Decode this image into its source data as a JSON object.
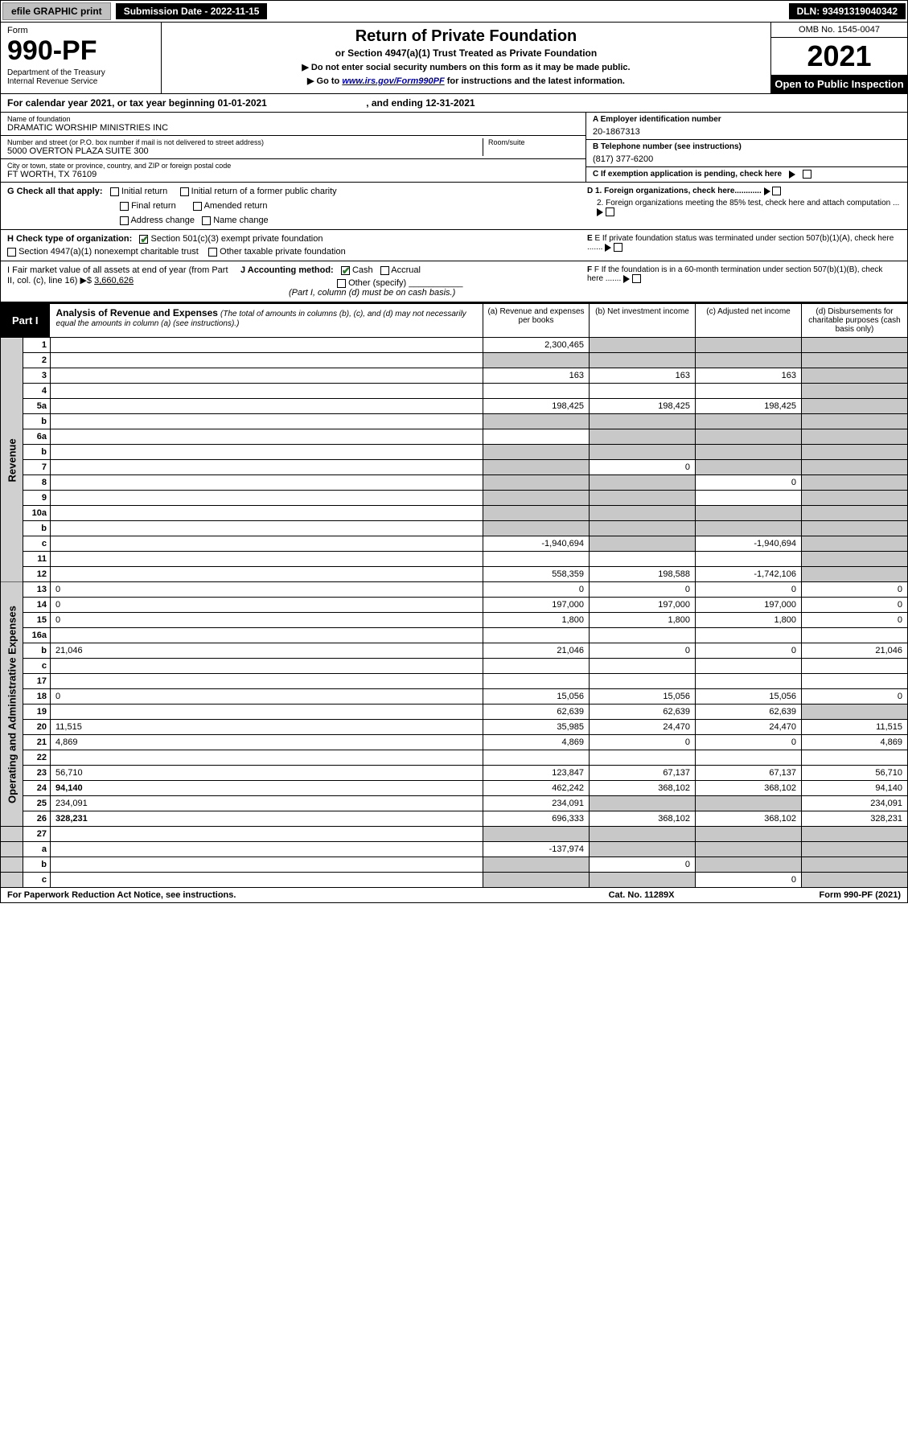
{
  "topbar": {
    "efile_btn": "efile GRAPHIC print",
    "sub_date": "Submission Date - 2022-11-15",
    "dln": "DLN: 93491319040342"
  },
  "header": {
    "form_label": "Form",
    "form_no": "990-PF",
    "dept": "Department of the Treasury\nInternal Revenue Service",
    "title": "Return of Private Foundation",
    "subtitle": "or Section 4947(a)(1) Trust Treated as Private Foundation",
    "note1": "▶ Do not enter social security numbers on this form as it may be made public.",
    "note2_pre": "▶ Go to ",
    "note2_link": "www.irs.gov/Form990PF",
    "note2_post": " for instructions and the latest information.",
    "omb": "OMB No. 1545-0047",
    "year": "2021",
    "open": "Open to Public Inspection"
  },
  "calyear": {
    "text_pre": "For calendar year 2021, or tax year beginning ",
    "begin": "01-01-2021",
    "mid": " , and ending ",
    "end": "12-31-2021"
  },
  "info": {
    "name_lbl": "Name of foundation",
    "name": "DRAMATIC WORSHIP MINISTRIES INC",
    "addr_lbl": "Number and street (or P.O. box number if mail is not delivered to street address)",
    "addr": "5000 OVERTON PLAZA SUITE 300",
    "room_lbl": "Room/suite",
    "city_lbl": "City or town, state or province, country, and ZIP or foreign postal code",
    "city": "FT WORTH, TX  76109",
    "ein_lbl": "A Employer identification number",
    "ein": "20-1867313",
    "tel_lbl": "B Telephone number (see instructions)",
    "tel": "(817) 377-6200",
    "c_lbl": "C If exemption application is pending, check here",
    "d1": "D 1. Foreign organizations, check here............",
    "d2": "2. Foreign organizations meeting the 85% test, check here and attach computation ...",
    "e_lbl": "E If private foundation status was terminated under section 507(b)(1)(A), check here .......",
    "f_lbl": "F If the foundation is in a 60-month termination under section 507(b)(1)(B), check here .......",
    "g_lbl": "G Check all that apply:",
    "g_opts": [
      "Initial return",
      "Initial return of a former public charity",
      "Final return",
      "Amended return",
      "Address change",
      "Name change"
    ],
    "h_lbl": "H Check type of organization:",
    "h1": "Section 501(c)(3) exempt private foundation",
    "h2": "Section 4947(a)(1) nonexempt charitable trust",
    "h3": "Other taxable private foundation",
    "i_lbl": "I Fair market value of all assets at end of year (from Part II, col. (c), line 16) ▶$",
    "i_val": "3,660,626",
    "j_lbl": "J Accounting method:",
    "j_cash": "Cash",
    "j_accr": "Accrual",
    "j_other": "Other (specify)",
    "j_note": "(Part I, column (d) must be on cash basis.)"
  },
  "part1": {
    "label": "Part I",
    "title": "Analysis of Revenue and Expenses",
    "title_note": " (The total of amounts in columns (b), (c), and (d) may not necessarily equal the amounts in column (a) (see instructions).)",
    "cols": {
      "a": "(a) Revenue and expenses per books",
      "b": "(b) Net investment income",
      "c": "(c) Adjusted net income",
      "d": "(d) Disbursements for charitable purposes (cash basis only)"
    }
  },
  "sections": {
    "revenue": "Revenue",
    "opex": "Operating and Administrative Expenses"
  },
  "rows": [
    {
      "n": "1",
      "d": "",
      "a": "2,300,465",
      "b": "",
      "c": "",
      "b_grey": true,
      "c_grey": true,
      "d_grey": true
    },
    {
      "n": "2",
      "d": "",
      "a": "",
      "b": "",
      "c": "",
      "a_grey": true,
      "b_grey": true,
      "c_grey": true,
      "d_grey": true,
      "not_bold": true
    },
    {
      "n": "3",
      "d": "",
      "a": "163",
      "b": "163",
      "c": "163",
      "d_grey": true
    },
    {
      "n": "4",
      "d": "",
      "a": "",
      "b": "",
      "c": "",
      "d_grey": true
    },
    {
      "n": "5a",
      "d": "",
      "a": "198,425",
      "b": "198,425",
      "c": "198,425",
      "d_grey": true
    },
    {
      "n": "b",
      "d": "",
      "a": "",
      "b": "",
      "c": "",
      "a_grey": true,
      "b_grey": true,
      "c_grey": true,
      "d_grey": true
    },
    {
      "n": "6a",
      "d": "",
      "a": "",
      "b": "",
      "c": "",
      "b_grey": true,
      "c_grey": true,
      "d_grey": true
    },
    {
      "n": "b",
      "d": "",
      "a": "",
      "b": "",
      "c": "",
      "a_grey": true,
      "b_grey": true,
      "c_grey": true,
      "d_grey": true
    },
    {
      "n": "7",
      "d": "",
      "a": "",
      "b": "0",
      "c": "",
      "a_grey": true,
      "c_grey": true,
      "d_grey": true
    },
    {
      "n": "8",
      "d": "",
      "a": "",
      "b": "",
      "c": "0",
      "a_grey": true,
      "b_grey": true,
      "d_grey": true
    },
    {
      "n": "9",
      "d": "",
      "a": "",
      "b": "",
      "c": "",
      "a_grey": true,
      "b_grey": true,
      "d_grey": true
    },
    {
      "n": "10a",
      "d": "",
      "a": "",
      "b": "",
      "c": "",
      "a_grey": true,
      "b_grey": true,
      "c_grey": true,
      "d_grey": true
    },
    {
      "n": "b",
      "d": "",
      "a": "",
      "b": "",
      "c": "",
      "a_grey": true,
      "b_grey": true,
      "c_grey": true,
      "d_grey": true
    },
    {
      "n": "c",
      "d": "",
      "a": "-1,940,694",
      "b": "",
      "c": "-1,940,694",
      "b_grey": true,
      "d_grey": true
    },
    {
      "n": "11",
      "d": "",
      "a": "",
      "b": "",
      "c": "",
      "d_grey": true
    },
    {
      "n": "12",
      "d": "",
      "a": "558,359",
      "b": "198,588",
      "c": "-1,742,106",
      "d_grey": true,
      "bold": true
    }
  ],
  "rows2": [
    {
      "n": "13",
      "d": "0",
      "a": "0",
      "b": "0",
      "c": "0"
    },
    {
      "n": "14",
      "d": "0",
      "a": "197,000",
      "b": "197,000",
      "c": "197,000"
    },
    {
      "n": "15",
      "d": "0",
      "a": "1,800",
      "b": "1,800",
      "c": "1,800"
    },
    {
      "n": "16a",
      "d": "",
      "a": "",
      "b": "",
      "c": ""
    },
    {
      "n": "b",
      "d": "21,046",
      "a": "21,046",
      "b": "0",
      "c": "0"
    },
    {
      "n": "c",
      "d": "",
      "a": "",
      "b": "",
      "c": ""
    },
    {
      "n": "17",
      "d": "",
      "a": "",
      "b": "",
      "c": ""
    },
    {
      "n": "18",
      "d": "0",
      "a": "15,056",
      "b": "15,056",
      "c": "15,056"
    },
    {
      "n": "19",
      "d": "",
      "a": "62,639",
      "b": "62,639",
      "c": "62,639",
      "d_grey": true
    },
    {
      "n": "20",
      "d": "11,515",
      "a": "35,985",
      "b": "24,470",
      "c": "24,470"
    },
    {
      "n": "21",
      "d": "4,869",
      "a": "4,869",
      "b": "0",
      "c": "0"
    },
    {
      "n": "22",
      "d": "",
      "a": "",
      "b": "",
      "c": ""
    },
    {
      "n": "23",
      "d": "56,710",
      "a": "123,847",
      "b": "67,137",
      "c": "67,137"
    },
    {
      "n": "24",
      "d": "94,140",
      "a": "462,242",
      "b": "368,102",
      "c": "368,102",
      "bold": true
    },
    {
      "n": "25",
      "d": "234,091",
      "a": "234,091",
      "b": "",
      "c": "",
      "b_grey": true,
      "c_grey": true
    },
    {
      "n": "26",
      "d": "328,231",
      "a": "696,333",
      "b": "368,102",
      "c": "368,102",
      "bold": true
    }
  ],
  "rows3": [
    {
      "n": "27",
      "d": "",
      "a": "",
      "b": "",
      "c": "",
      "a_grey": true,
      "b_grey": true,
      "c_grey": true,
      "d_grey": true
    },
    {
      "n": "a",
      "d": "",
      "a": "-137,974",
      "b": "",
      "c": "",
      "b_grey": true,
      "c_grey": true,
      "d_grey": true,
      "bold": true
    },
    {
      "n": "b",
      "d": "",
      "a": "",
      "b": "0",
      "c": "",
      "a_grey": true,
      "c_grey": true,
      "d_grey": true,
      "bold": true
    },
    {
      "n": "c",
      "d": "",
      "a": "",
      "b": "",
      "c": "0",
      "a_grey": true,
      "b_grey": true,
      "d_grey": true,
      "bold": true
    }
  ],
  "footer": {
    "left": "For Paperwork Reduction Act Notice, see instructions.",
    "mid": "Cat. No. 11289X",
    "right": "Form 990-PF (2021)"
  }
}
